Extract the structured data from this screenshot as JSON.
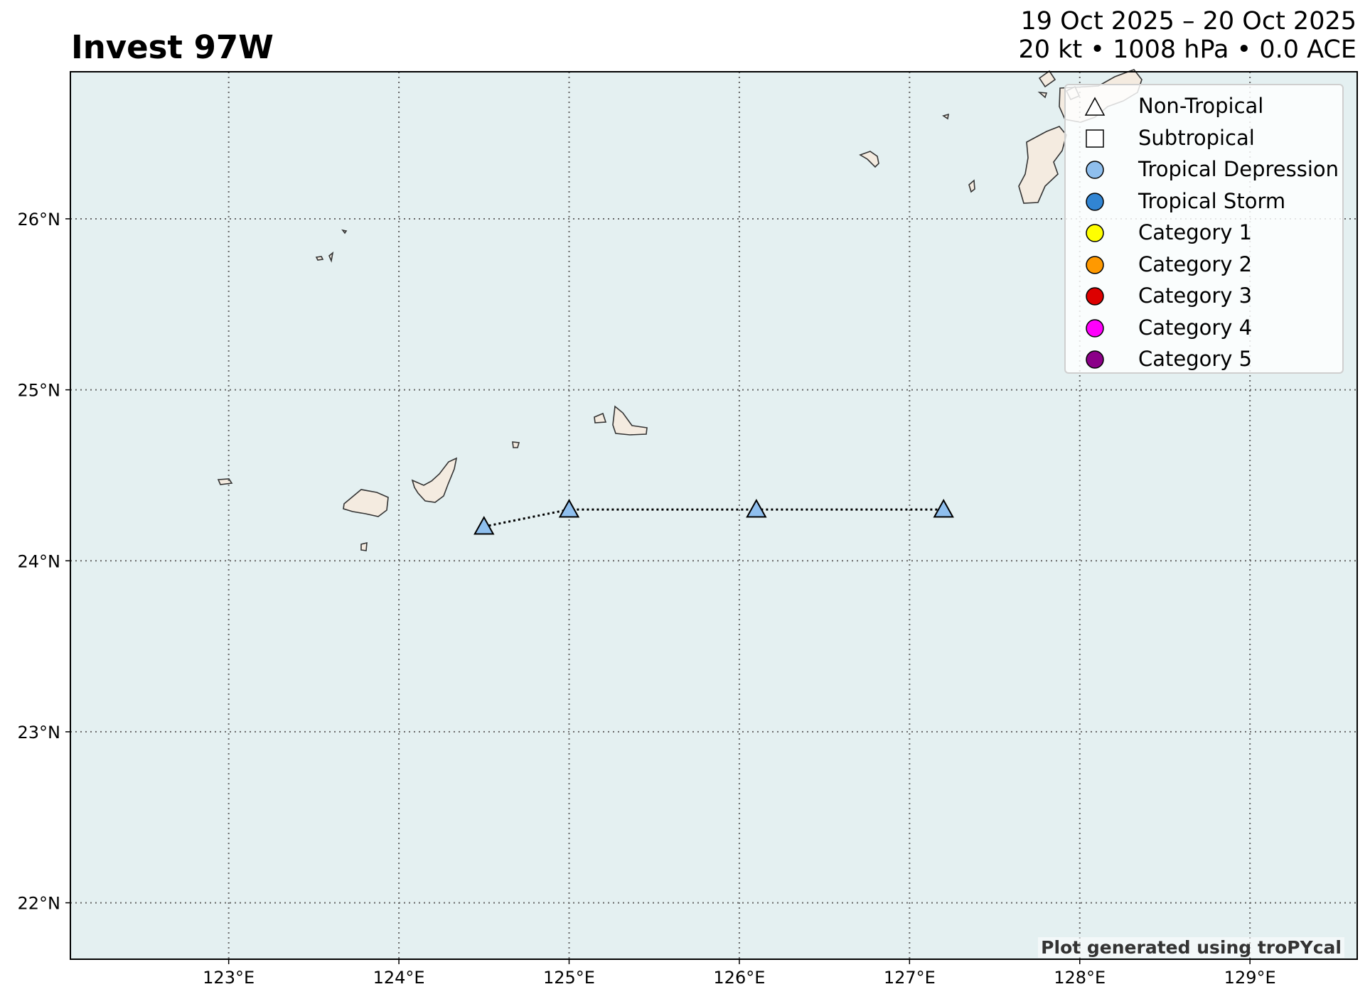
{
  "title": "Invest 97W",
  "subtitle_dates": "19 Oct 2025 – 20 Oct 2025",
  "subtitle_stats": "20 kt • 1008 hPa • 0.0 ACE",
  "credit": "Plot generated using troPYcal",
  "colors": {
    "ocean": "#e4f0f1",
    "land": "#f4ebe0",
    "coast": "#333333",
    "grid": "#666666",
    "track": "#000000"
  },
  "map": {
    "lon_range": [
      122.07,
      129.63
    ],
    "lat_range": [
      21.67,
      26.86
    ],
    "lon_ticks": [
      {
        "value": 123,
        "label": "123°E"
      },
      {
        "value": 124,
        "label": "124°E"
      },
      {
        "value": 125,
        "label": "125°E"
      },
      {
        "value": 126,
        "label": "126°E"
      },
      {
        "value": 127,
        "label": "127°E"
      },
      {
        "value": 128,
        "label": "128°E"
      },
      {
        "value": 129,
        "label": "129°E"
      }
    ],
    "lat_ticks": [
      {
        "value": 22,
        "label": "22°N"
      },
      {
        "value": 23,
        "label": "23°N"
      },
      {
        "value": 24,
        "label": "24°N"
      },
      {
        "value": 25,
        "label": "25°N"
      },
      {
        "value": 26,
        "label": "26°N"
      }
    ],
    "grid": true
  },
  "track": [
    {
      "lon": 124.5,
      "lat": 24.2,
      "type": "Non-Tropical",
      "category": "Tropical Depression"
    },
    {
      "lon": 125.0,
      "lat": 24.3,
      "type": "Non-Tropical",
      "category": "Tropical Depression"
    },
    {
      "lon": 126.1,
      "lat": 24.3,
      "type": "Non-Tropical",
      "category": "Tropical Depression"
    },
    {
      "lon": 127.2,
      "lat": 24.3,
      "type": "Non-Tropical",
      "category": "Tropical Depression"
    }
  ],
  "legend": {
    "position": "top-right",
    "items": [
      {
        "label": "Non-Tropical",
        "symbol": "triangle",
        "color": "#ffffff"
      },
      {
        "label": "Subtropical",
        "symbol": "square",
        "color": "#ffffff"
      },
      {
        "label": "Tropical Depression",
        "symbol": "circle",
        "color": "#8fbfee"
      },
      {
        "label": "Tropical Storm",
        "symbol": "circle",
        "color": "#3185d3"
      },
      {
        "label": "Category 1",
        "symbol": "circle",
        "color": "#ffff00"
      },
      {
        "label": "Category 2",
        "symbol": "circle",
        "color": "#ff9900"
      },
      {
        "label": "Category 3",
        "symbol": "circle",
        "color": "#dd0000"
      },
      {
        "label": "Category 4",
        "symbol": "circle",
        "color": "#ff00fc"
      },
      {
        "label": "Category 5",
        "symbol": "circle",
        "color": "#8b0088"
      }
    ]
  }
}
